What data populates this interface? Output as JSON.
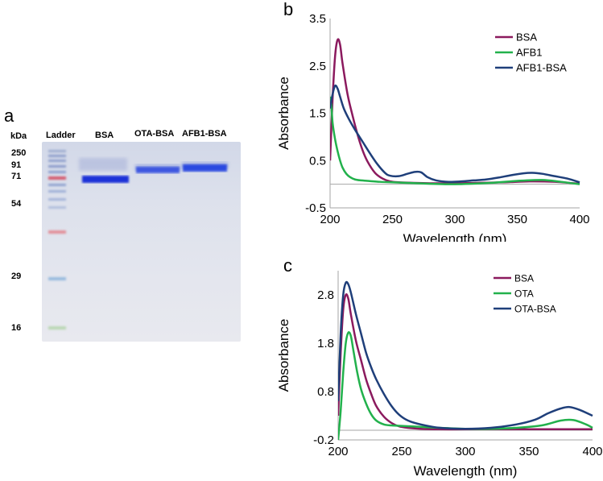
{
  "panels": {
    "a": "a",
    "b": "b",
    "c": "c"
  },
  "gel": {
    "unit_label": "kDa",
    "lane_labels": [
      "Ladder",
      "BSA",
      "OTA-BSA",
      "AFB1-BSA"
    ],
    "markers": [
      "250",
      "91",
      "71",
      "54",
      "29",
      "16"
    ]
  },
  "chart_data": [
    {
      "type": "line",
      "panel": "b",
      "xlabel": "Wavelength (nm)",
      "ylabel": "Absorbance",
      "xlim": [
        200,
        400
      ],
      "ylim": [
        -0.5,
        3.5
      ],
      "xticks": [
        200,
        250,
        300,
        350,
        400
      ],
      "yticks": [
        -0.5,
        0.5,
        1.5,
        2.5,
        3.5
      ],
      "grid": false,
      "legend": "top-right",
      "series": [
        {
          "name": "BSA",
          "color": "#8b1a5e",
          "x": [
            200,
            202,
            204,
            206,
            208,
            210,
            214,
            218,
            222,
            226,
            230,
            236,
            242,
            248,
            255,
            265,
            280,
            300,
            320,
            340,
            360,
            380,
            400
          ],
          "y": [
            0.5,
            1.8,
            2.7,
            3.05,
            2.95,
            2.55,
            1.9,
            1.45,
            1.05,
            0.72,
            0.48,
            0.24,
            0.12,
            0.06,
            0.04,
            0.03,
            0.02,
            0.02,
            0.03,
            0.04,
            0.06,
            0.05,
            0.01
          ]
        },
        {
          "name": "AFB1",
          "color": "#22b14c",
          "x": [
            200,
            201,
            202,
            204,
            206,
            208,
            210,
            213,
            216,
            220,
            225,
            230,
            240,
            250,
            270,
            300,
            330,
            350,
            370,
            385,
            400
          ],
          "y": [
            1.85,
            1.7,
            1.3,
            0.95,
            0.7,
            0.5,
            0.35,
            0.22,
            0.15,
            0.1,
            0.08,
            0.07,
            0.05,
            0.04,
            0.02,
            0.0,
            0.03,
            0.07,
            0.09,
            0.05,
            0.0
          ]
        },
        {
          "name": "AFB1-BSA",
          "color": "#1f3f7a",
          "x": [
            200,
            202,
            204,
            206,
            208,
            211,
            215,
            220,
            226,
            232,
            238,
            244,
            248,
            255,
            262,
            268,
            273,
            278,
            285,
            295,
            305,
            315,
            325,
            335,
            345,
            355,
            362,
            370,
            380,
            390,
            400
          ],
          "y": [
            1.6,
            1.9,
            2.08,
            2.02,
            1.85,
            1.6,
            1.38,
            1.15,
            0.9,
            0.65,
            0.42,
            0.24,
            0.18,
            0.17,
            0.22,
            0.26,
            0.25,
            0.15,
            0.08,
            0.05,
            0.06,
            0.08,
            0.1,
            0.14,
            0.19,
            0.23,
            0.24,
            0.22,
            0.17,
            0.12,
            0.04
          ]
        }
      ]
    },
    {
      "type": "line",
      "panel": "c",
      "xlabel": "Wavelength (nm)",
      "ylabel": "Absorbance",
      "xlim": [
        200,
        400
      ],
      "ylim": [
        -0.2,
        3.3
      ],
      "xticks": [
        200,
        250,
        300,
        350,
        400
      ],
      "yticks": [
        -0.2,
        0.8,
        1.8,
        2.8
      ],
      "grid": false,
      "legend": "top-right",
      "series": [
        {
          "name": "BSA",
          "color": "#8b1a5e",
          "x": [
            200,
            202,
            204,
            206,
            208,
            210,
            214,
            218,
            222,
            226,
            230,
            236,
            242,
            248,
            255,
            265,
            280,
            300,
            320,
            340,
            360,
            380,
            400
          ],
          "y": [
            0.3,
            1.6,
            2.5,
            2.8,
            2.72,
            2.4,
            1.85,
            1.45,
            1.05,
            0.75,
            0.5,
            0.28,
            0.15,
            0.08,
            0.05,
            0.03,
            0.02,
            0.02,
            0.02,
            0.02,
            0.02,
            0.02,
            0.02
          ]
        },
        {
          "name": "OTA",
          "color": "#22b14c",
          "x": [
            200,
            202,
            204,
            206,
            208,
            210,
            212,
            215,
            218,
            222,
            226,
            230,
            236,
            242,
            250,
            265,
            280,
            300,
            320,
            340,
            360,
            375,
            385,
            395,
            400
          ],
          "y": [
            -0.2,
            0.4,
            1.2,
            1.8,
            2.02,
            1.95,
            1.65,
            1.2,
            0.85,
            0.55,
            0.33,
            0.2,
            0.12,
            0.1,
            0.09,
            0.07,
            0.05,
            0.03,
            0.03,
            0.05,
            0.1,
            0.2,
            0.21,
            0.12,
            0.05
          ]
        },
        {
          "name": "OTA-BSA",
          "color": "#1f3f7a",
          "x": [
            200,
            202,
            204,
            206,
            208,
            210,
            214,
            218,
            222,
            226,
            230,
            236,
            242,
            248,
            255,
            265,
            280,
            300,
            320,
            340,
            355,
            365,
            375,
            382,
            390,
            400
          ],
          "y": [
            0.6,
            2.0,
            2.8,
            3.05,
            3.02,
            2.85,
            2.4,
            2.0,
            1.6,
            1.3,
            1.05,
            0.75,
            0.5,
            0.32,
            0.2,
            0.12,
            0.05,
            0.03,
            0.05,
            0.12,
            0.22,
            0.35,
            0.45,
            0.48,
            0.42,
            0.3
          ]
        }
      ]
    }
  ]
}
